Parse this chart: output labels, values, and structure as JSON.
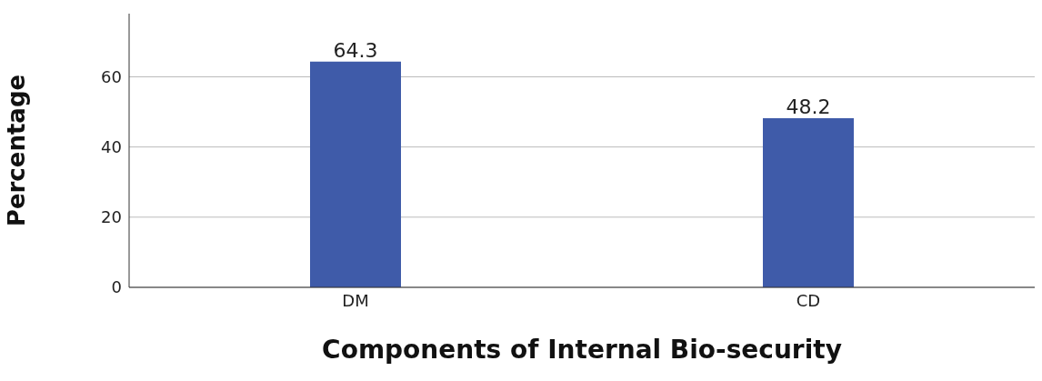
{
  "chart_data": {
    "type": "bar",
    "xlabel": "Components of Internal Bio-security",
    "ylabel": "Percentage",
    "categories": [
      "DM",
      "CD"
    ],
    "values": [
      64.3,
      48.2
    ],
    "color": "#3f5ba9",
    "ylim": [
      0,
      78
    ],
    "yticks": [
      0,
      20,
      40,
      60
    ],
    "grid": "y",
    "data_labels": true
  }
}
